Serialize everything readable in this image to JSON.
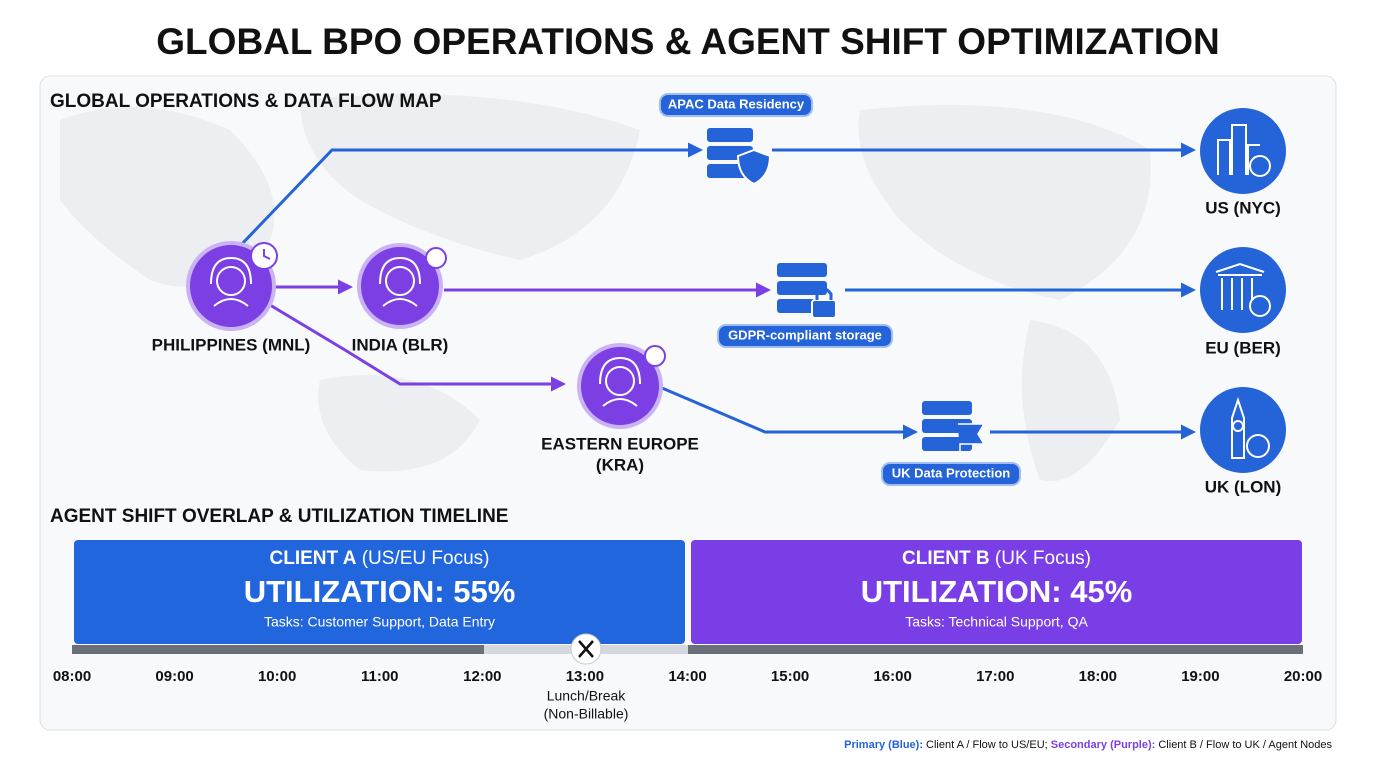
{
  "title": "GLOBAL BPO OPERATIONS & AGENT SHIFT OPTIMIZATION",
  "map": {
    "title": "GLOBAL OPERATIONS & DATA FLOW MAP",
    "agents": [
      {
        "label": [
          "PHILIPPINES (MNL)"
        ]
      },
      {
        "label": [
          "INDIA (BLR)"
        ]
      },
      {
        "label": [
          "EASTERN EUROPE",
          "(KRA)"
        ]
      }
    ],
    "storage": [
      "APAC Data Residency",
      "GDPR-compliant storage",
      "UK Data Protection"
    ],
    "destinations": [
      "US (NYC)",
      "EU (BER)",
      "UK (LON)"
    ]
  },
  "timeline": {
    "title": "AGENT SHIFT OVERLAP & UTILIZATION TIMELINE",
    "clients": [
      {
        "name": "CLIENT A",
        "focus": "(US/EU Focus)",
        "utilization": "UTILIZATION: 55%",
        "tasks": "Tasks: Customer Support, Data Entry"
      },
      {
        "name": "CLIENT B",
        "focus": "(UK Focus)",
        "utilization": "UTILIZATION: 45%",
        "tasks": "Tasks: Technical Support, QA"
      }
    ],
    "break": [
      "Lunch/Break",
      "(Non-Billable)"
    ],
    "hours": [
      "08:00",
      "09:00",
      "10:00",
      "11:00",
      "12:00",
      "13:00",
      "14:00",
      "15:00",
      "16:00",
      "17:00",
      "18:00",
      "19:00",
      "20:00"
    ]
  },
  "legend": {
    "primary": "Primary (Blue):",
    "primary_text": "Client A / Flow to US/EU;",
    "secondary": "Secondary (Purple):",
    "secondary_text": "Client B / Flow to UK / Agent Nodes"
  }
}
